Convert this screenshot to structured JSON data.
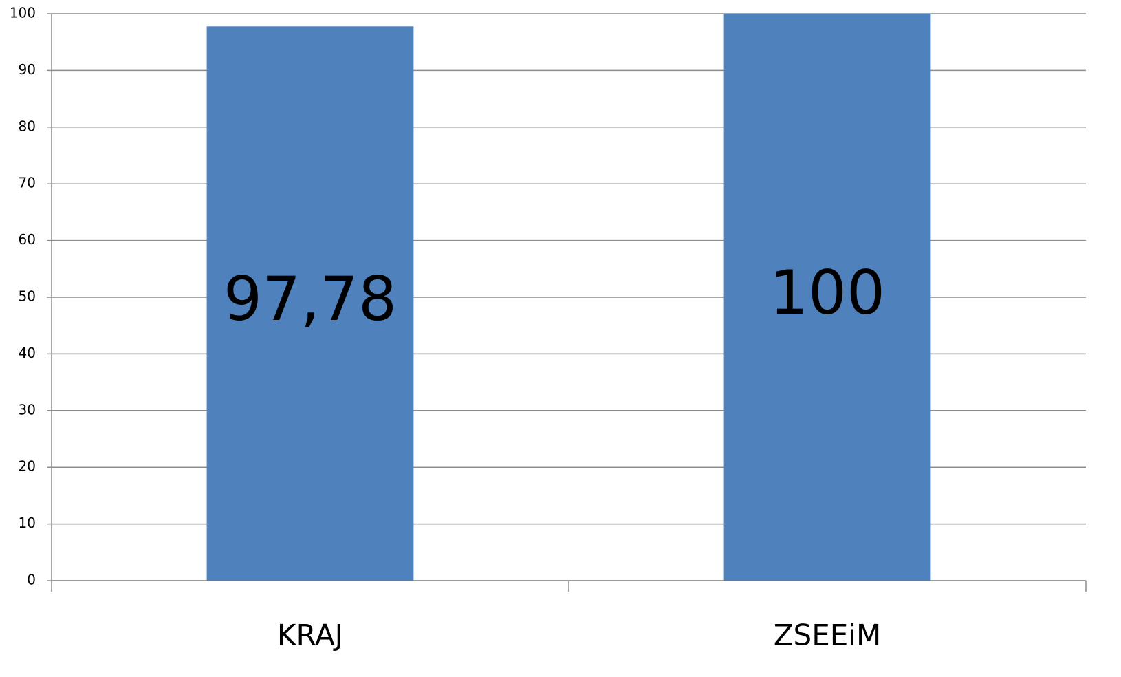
{
  "chart_data": {
    "type": "bar",
    "categories": [
      "KRAJ",
      "ZSEEiM"
    ],
    "values": [
      97.78,
      100
    ],
    "value_labels": [
      "97,78",
      "100"
    ],
    "color": "#4f81bd",
    "ylim": [
      0,
      100
    ],
    "yticks": [
      0,
      10,
      20,
      30,
      40,
      50,
      60,
      70,
      80,
      90,
      100
    ],
    "grid": true
  }
}
